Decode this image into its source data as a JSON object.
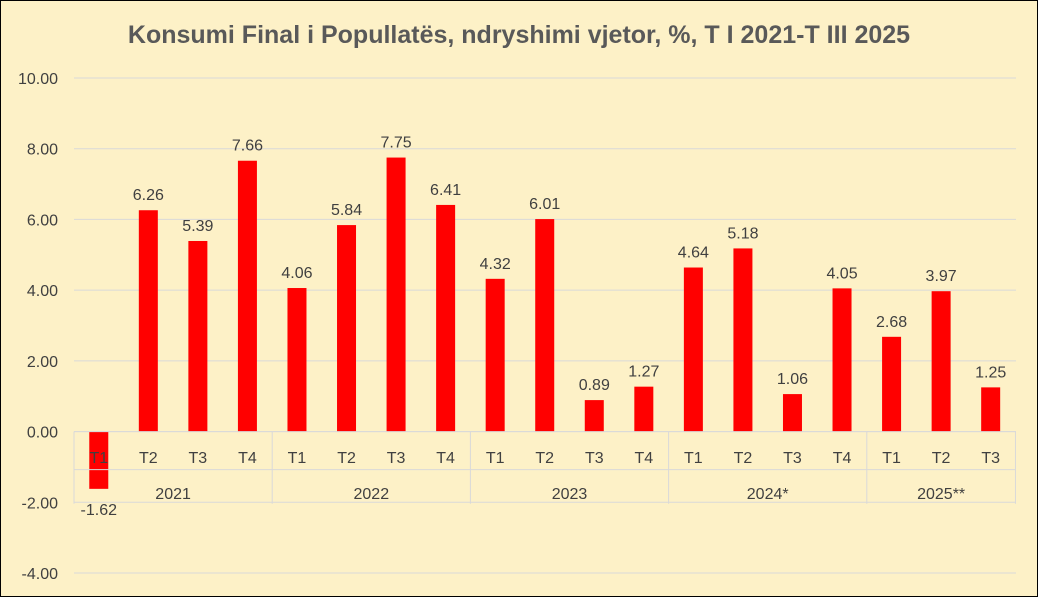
{
  "chart_data": {
    "type": "bar",
    "title": "Konsumi Final i Popullatës, ndryshimi vjetor, %, T I 2021-T III 2025",
    "xlabel": "",
    "ylabel": "",
    "ylim": [
      -4,
      10
    ],
    "ytick_step": 2,
    "grid": true,
    "legend": "none",
    "bar_color": "#ff0000",
    "groups": [
      {
        "label": "2021",
        "categories": [
          "T1",
          "T2",
          "T3",
          "T4"
        ],
        "values": [
          -1.62,
          6.26,
          5.39,
          7.66
        ]
      },
      {
        "label": "2022",
        "categories": [
          "T1",
          "T2",
          "T3",
          "T4"
        ],
        "values": [
          4.06,
          5.84,
          7.75,
          6.41
        ]
      },
      {
        "label": "2023",
        "categories": [
          "T1",
          "T2",
          "T3",
          "T4"
        ],
        "values": [
          4.32,
          6.01,
          0.89,
          1.27
        ]
      },
      {
        "label": "2024*",
        "categories": [
          "T1",
          "T2",
          "T3",
          "T4"
        ],
        "values": [
          4.64,
          5.18,
          1.06,
          4.05
        ]
      },
      {
        "label": "2025**",
        "categories": [
          "T1",
          "T2",
          "T3"
        ],
        "values": [
          2.68,
          3.97,
          1.25
        ]
      }
    ]
  }
}
